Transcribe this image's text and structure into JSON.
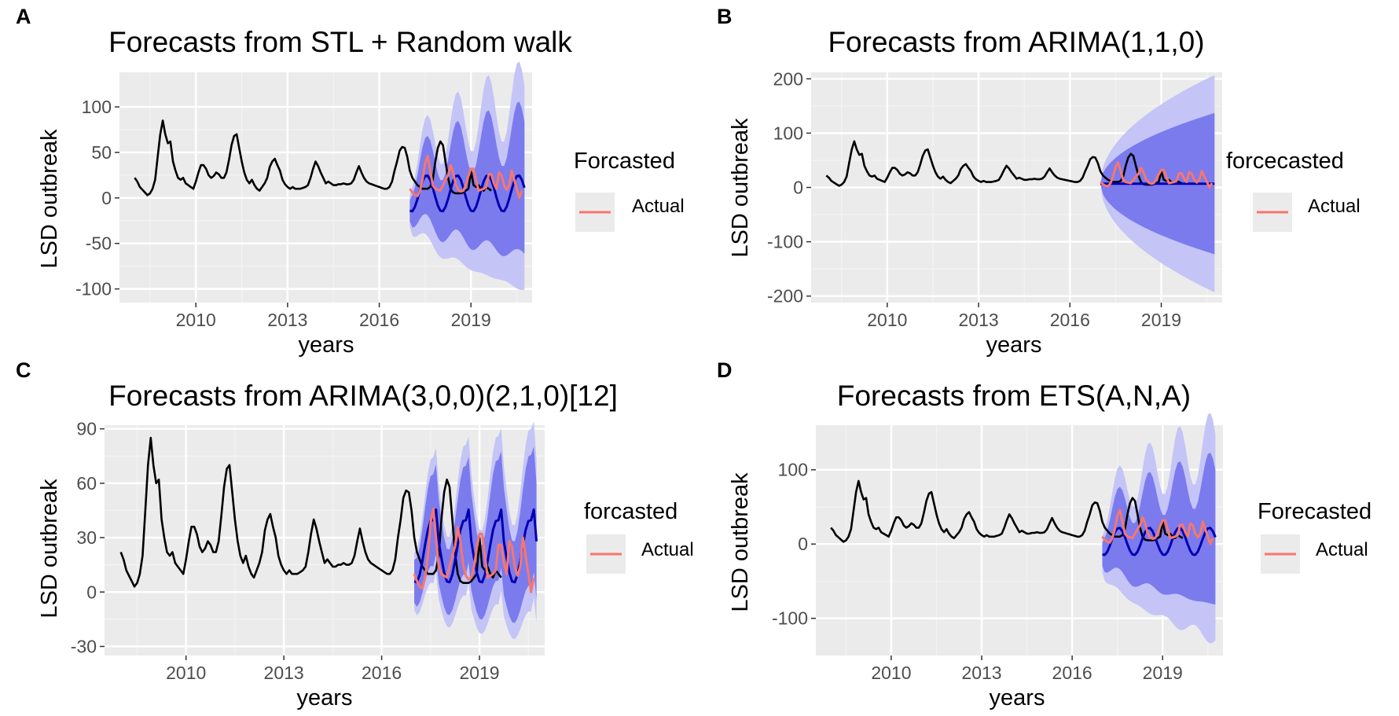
{
  "colors": {
    "background": "#ffffff",
    "panel": "#ebebeb",
    "grid_major": "#ffffff",
    "grid_minor": "#f3f3f3",
    "history_line": "#000000",
    "forecast_line": "#0000b0",
    "actual_line": "#f8766d",
    "band_80": "#7b7bee",
    "band_95": "#c4c4f7",
    "legend_key_bg": "#ebebeb",
    "text": "#000000",
    "tick_text": "#4d4d4d"
  },
  "history": [
    22,
    18,
    12,
    9,
    6,
    3,
    5,
    10,
    20,
    45,
    70,
    85,
    70,
    60,
    62,
    40,
    30,
    22,
    20,
    22,
    16,
    14,
    12,
    10,
    18,
    28,
    36,
    36,
    32,
    25,
    22,
    24,
    28,
    26,
    22,
    22,
    28,
    42,
    58,
    68,
    70,
    55,
    40,
    28,
    20,
    16,
    20,
    14,
    10,
    8,
    12,
    16,
    22,
    34,
    40,
    43,
    36,
    30,
    20,
    15,
    12,
    10,
    12,
    10,
    10,
    10,
    11,
    12,
    14,
    22,
    32,
    40,
    35,
    28,
    22,
    16,
    18,
    16,
    14,
    14,
    15,
    15,
    16,
    15,
    15,
    16,
    20,
    28,
    35,
    28,
    22,
    18,
    16,
    15,
    14,
    13,
    12,
    11,
    10,
    10,
    12,
    18,
    30,
    40,
    52,
    56,
    55,
    45,
    30,
    22,
    18,
    14,
    12,
    10,
    10,
    10,
    12,
    20,
    40,
    55,
    62,
    58,
    40,
    22,
    10,
    6,
    5,
    5,
    5,
    6,
    8,
    10,
    30,
    14,
    12,
    14,
    10,
    8,
    12,
    10,
    8
  ],
  "actual": [
    10,
    6,
    3,
    2,
    8,
    20,
    38,
    46,
    30,
    14,
    10,
    9,
    8,
    14,
    20,
    25,
    36,
    28,
    15,
    9,
    7,
    8,
    14,
    24,
    32,
    32,
    20,
    8,
    9,
    10,
    12,
    26,
    26,
    16,
    10,
    28,
    25,
    14,
    9,
    14,
    30,
    20,
    10,
    0,
    8
  ],
  "charts": [
    {
      "label": "A",
      "chart_data": {
        "type": "line",
        "title": "Forecasts from STL +  Random walk",
        "xlabel": "years",
        "ylabel": "LSD outbreak",
        "legend_title": "Forcasted",
        "legend_entry": "Actual",
        "xticks": [
          2010,
          2013,
          2016,
          2019
        ],
        "xlim": [
          2007.5,
          2021.0
        ],
        "yticks": [
          -100,
          -50,
          0,
          50,
          100
        ],
        "ylim": [
          -115,
          138
        ],
        "forecast_start": 2017.0,
        "forecast_end": 2020.85,
        "forecast_model": "stl",
        "forecast_mean_range": [
          -15,
          25
        ],
        "band_80_halfwidth": [
          15,
          68
        ],
        "band_95_halfwidth": [
          22,
          105
        ]
      }
    },
    {
      "label": "B",
      "chart_data": {
        "type": "line",
        "title": "Forecasts from ARIMA(1,1,0)",
        "xlabel": "years",
        "ylabel": "LSD outbreak",
        "legend_title": "forcecasted",
        "legend_entry": "Actual",
        "xticks": [
          2010,
          2013,
          2016,
          2019
        ],
        "xlim": [
          2007.5,
          2021.0
        ],
        "yticks": [
          -200,
          -100,
          0,
          100,
          200
        ],
        "ylim": [
          -212,
          212
        ],
        "forecast_start": 2017.0,
        "forecast_end": 2020.85,
        "forecast_model": "flat",
        "forecast_mean_range": [
          7,
          7
        ],
        "band_80_halfwidth": [
          0,
          130
        ],
        "band_95_halfwidth": [
          0,
          200
        ]
      }
    },
    {
      "label": "C",
      "chart_data": {
        "type": "line",
        "title": "Forecasts from ARIMA(3,0,0)(2,1,0)[12]",
        "xlabel": "years",
        "ylabel": "LSD outbreak",
        "legend_title": "forcasted",
        "legend_entry": "Actual",
        "xticks": [
          2010,
          2013,
          2016,
          2019
        ],
        "xlim": [
          2007.5,
          2021.0
        ],
        "yticks": [
          -30,
          0,
          30,
          60,
          90
        ],
        "ylim": [
          -35,
          92
        ],
        "forecast_start": 2017.0,
        "forecast_end": 2020.85,
        "forecast_model": "seasonal",
        "forecast_mean_range": [
          5,
          40
        ],
        "band_80_halfwidth": [
          15,
          30
        ],
        "band_95_halfwidth": [
          20,
          42
        ]
      }
    },
    {
      "label": "D",
      "chart_data": {
        "type": "line",
        "title": "Forecasts from ETS(A,N,A)",
        "xlabel": "years",
        "ylabel": "LSD outbreak",
        "legend_title": "Forecasted",
        "legend_entry": "Actual",
        "xticks": [
          2010,
          2013,
          2016,
          2019
        ],
        "xlim": [
          2007.5,
          2021.0
        ],
        "yticks": [
          -100,
          0,
          100
        ],
        "ylim": [
          -150,
          160
        ],
        "forecast_start": 2017.0,
        "forecast_end": 2020.85,
        "forecast_model": "ets",
        "forecast_mean_range": [
          -15,
          22
        ],
        "band_80_halfwidth": [
          20,
          85
        ],
        "band_95_halfwidth": [
          30,
          130
        ]
      }
    }
  ]
}
